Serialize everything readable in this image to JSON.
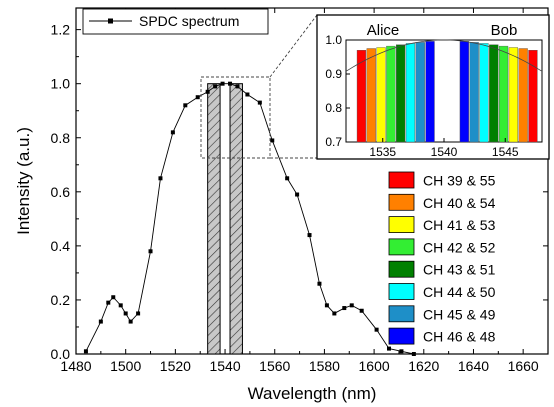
{
  "chart_data": {
    "type": "line",
    "xlabel": "Wavelength (nm)",
    "ylabel": "Intensity (a.u.)",
    "xlim": [
      1480,
      1670
    ],
    "ylim": [
      0.0,
      1.28
    ],
    "xticks": [
      "1480",
      "1500",
      "1520",
      "1540",
      "1560",
      "1580",
      "1600",
      "1620",
      "1640",
      "1660"
    ],
    "yticks": [
      "0.0",
      "0.2",
      "0.4",
      "0.6",
      "0.8",
      "1.0",
      "1.2"
    ],
    "grid": false,
    "legend": {
      "position": "top-left",
      "entries": [
        "SPDC spectrum"
      ]
    },
    "series": [
      {
        "name": "SPDC spectrum",
        "x": [
          1484,
          1490,
          1493,
          1495,
          1498,
          1500,
          1502,
          1505,
          1510,
          1514,
          1519,
          1524,
          1529,
          1533,
          1536,
          1539,
          1542,
          1545,
          1549,
          1554,
          1559,
          1565,
          1569,
          1574,
          1578,
          1581,
          1584,
          1588,
          1591,
          1595,
          1601,
          1606,
          1611,
          1616
        ],
        "y": [
          0.01,
          0.12,
          0.19,
          0.21,
          0.18,
          0.15,
          0.12,
          0.15,
          0.38,
          0.65,
          0.82,
          0.92,
          0.95,
          0.97,
          0.99,
          1.0,
          1.0,
          0.99,
          0.96,
          0.93,
          0.79,
          0.65,
          0.59,
          0.44,
          0.26,
          0.18,
          0.15,
          0.17,
          0.18,
          0.16,
          0.09,
          0.02,
          0.01,
          0.0
        ]
      }
    ],
    "shaded_bands": [
      {
        "name": "Alice",
        "x_range": [
          1533,
          1538
        ]
      },
      {
        "name": "Bob",
        "x_range": [
          1542,
          1547
        ]
      }
    ],
    "inset": {
      "xlim": [
        1532,
        1548
      ],
      "ylim": [
        0.7,
        1.0
      ],
      "xticks": [
        "1535",
        "1540",
        "1545"
      ],
      "yticks": [
        "0.7",
        "0.8",
        "0.9",
        "1.0"
      ],
      "labels": [
        "Alice",
        "Bob"
      ],
      "bars": [
        {
          "x": 1533.0,
          "value": 0.97,
          "color": "#ff0000"
        },
        {
          "x": 1533.8,
          "value": 0.975,
          "color": "#ff8000"
        },
        {
          "x": 1534.6,
          "value": 0.978,
          "color": "#ffff00"
        },
        {
          "x": 1535.4,
          "value": 0.982,
          "color": "#33ee33"
        },
        {
          "x": 1536.2,
          "value": 0.986,
          "color": "#008000"
        },
        {
          "x": 1537.0,
          "value": 0.99,
          "color": "#00ffff"
        },
        {
          "x": 1537.8,
          "value": 0.993,
          "color": "#1e8fc8"
        },
        {
          "x": 1538.6,
          "value": 0.996,
          "color": "#0000ff"
        },
        {
          "x": 1541.4,
          "value": 0.996,
          "color": "#0000ff"
        },
        {
          "x": 1542.2,
          "value": 0.993,
          "color": "#1e8fc8"
        },
        {
          "x": 1543.0,
          "value": 0.99,
          "color": "#00ffff"
        },
        {
          "x": 1543.8,
          "value": 0.986,
          "color": "#008000"
        },
        {
          "x": 1544.6,
          "value": 0.982,
          "color": "#33ee33"
        },
        {
          "x": 1545.4,
          "value": 0.978,
          "color": "#ffff00"
        },
        {
          "x": 1546.2,
          "value": 0.975,
          "color": "#ff8000"
        },
        {
          "x": 1547.0,
          "value": 0.97,
          "color": "#ff0000"
        }
      ]
    },
    "channels": [
      {
        "label": "CH 39 & 55",
        "color": "#ff0000"
      },
      {
        "label": "CH 40 & 54",
        "color": "#ff8000"
      },
      {
        "label": "CH 41 & 53",
        "color": "#ffff00"
      },
      {
        "label": "CH 42 & 52",
        "color": "#33ee33"
      },
      {
        "label": "CH 43 & 51",
        "color": "#008000"
      },
      {
        "label": "CH 44 & 50",
        "color": "#00ffff"
      },
      {
        "label": "CH 45 & 49",
        "color": "#1e8fc8"
      },
      {
        "label": "CH 46 & 48",
        "color": "#0000ff"
      }
    ]
  }
}
